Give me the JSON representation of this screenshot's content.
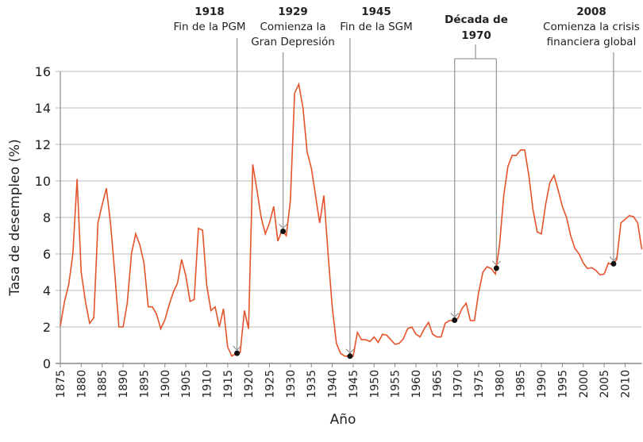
{
  "chart_data": {
    "type": "line",
    "title": "",
    "xlabel": "Año",
    "ylabel": "Tasa de desempleo (%)",
    "xlim": [
      1875,
      2014
    ],
    "ylim": [
      0,
      16
    ],
    "grid": true,
    "line_color": "#e5532a",
    "x_ticks": [
      1875,
      1880,
      1885,
      1890,
      1895,
      1900,
      1905,
      1910,
      1915,
      1920,
      1925,
      1930,
      1935,
      1940,
      1945,
      1950,
      1955,
      1960,
      1965,
      1970,
      1975,
      1980,
      1985,
      1990,
      1995,
      2000,
      2005,
      2010
    ],
    "y_ticks": [
      0,
      2,
      4,
      6,
      8,
      10,
      12,
      14,
      16
    ],
    "series": [
      {
        "x": [
          1875,
          1876,
          1877,
          1878,
          1879,
          1880,
          1881,
          1882,
          1883,
          1884,
          1885,
          1886,
          1887,
          1888,
          1889,
          1890,
          1891,
          1892,
          1893,
          1894,
          1895,
          1896,
          1897,
          1898,
          1899,
          1900,
          1901,
          1902,
          1903,
          1904,
          1905,
          1906,
          1907,
          1908,
          1909,
          1910,
          1911,
          1912,
          1913,
          1914,
          1915,
          1916,
          1917,
          1918,
          1919,
          1920,
          1921,
          1922,
          1923,
          1924,
          1925,
          1926,
          1927,
          1928,
          1929,
          1930,
          1931,
          1932,
          1933,
          1934,
          1935,
          1936,
          1937,
          1938,
          1939,
          1940,
          1941,
          1942,
          1943,
          1944,
          1945,
          1946,
          1947,
          1948,
          1949,
          1950,
          1951,
          1952,
          1953,
          1954,
          1955,
          1956,
          1957,
          1958,
          1959,
          1960,
          1961,
          1962,
          1963,
          1964,
          1965,
          1966,
          1967,
          1968,
          1969,
          1970,
          1971,
          1972,
          1973,
          1974,
          1975,
          1976,
          1977,
          1978,
          1979,
          1980,
          1981,
          1982,
          1983,
          1984,
          1985,
          1986,
          1987,
          1988,
          1989,
          1990,
          1991,
          1992,
          1993,
          1994,
          1995,
          1996,
          1997,
          1998,
          1999,
          2000,
          2001,
          2002,
          2003,
          2004,
          2005,
          2006,
          2007,
          2008,
          2009,
          2010,
          2011,
          2012,
          2013,
          2014
        ],
        "y": [
          2.05,
          3.4,
          4.3,
          6.0,
          10.1,
          5.0,
          3.4,
          2.2,
          2.5,
          7.7,
          8.7,
          9.6,
          7.7,
          5.0,
          2.0,
          2.0,
          3.3,
          6.0,
          7.1,
          6.5,
          5.5,
          3.1,
          3.1,
          2.7,
          1.9,
          2.4,
          3.2,
          3.9,
          4.4,
          5.7,
          4.8,
          3.4,
          3.5,
          7.4,
          7.3,
          4.3,
          2.9,
          3.1,
          2.0,
          3.0,
          0.9,
          0.4,
          0.55,
          0.6,
          2.9,
          1.9,
          10.9,
          9.5,
          8.0,
          7.1,
          7.7,
          8.6,
          6.7,
          7.3,
          7.0,
          8.9,
          14.8,
          15.3,
          14.0,
          11.6,
          10.7,
          9.2,
          7.7,
          9.2,
          6.0,
          3.1,
          1.1,
          0.55,
          0.4,
          0.4,
          0.4,
          1.7,
          1.3,
          1.3,
          1.2,
          1.45,
          1.15,
          1.6,
          1.55,
          1.3,
          1.05,
          1.1,
          1.35,
          1.9,
          2.0,
          1.6,
          1.45,
          1.9,
          2.25,
          1.6,
          1.45,
          1.45,
          2.2,
          2.35,
          2.35,
          2.45,
          3.0,
          3.3,
          2.35,
          2.35,
          3.9,
          5.0,
          5.3,
          5.2,
          4.9,
          6.5,
          9.2,
          10.8,
          11.4,
          11.4,
          11.7,
          11.7,
          10.3,
          8.4,
          7.2,
          7.1,
          8.7,
          9.9,
          10.3,
          9.5,
          8.6,
          8.0,
          7.0,
          6.3,
          6.0,
          5.5,
          5.2,
          5.25,
          5.1,
          4.85,
          4.9,
          5.5,
          5.4,
          5.7,
          7.7,
          7.9,
          8.1,
          8.05,
          7.7,
          6.25
        ]
      }
    ],
    "annotations": [
      {
        "year": 1918,
        "title": "1918",
        "lines": [
          "Fin de la PGM"
        ]
      },
      {
        "year": 1929,
        "title": "1929",
        "lines": [
          "Comienza la",
          "Gran Depresión"
        ]
      },
      {
        "year": 1945,
        "title": "1945",
        "lines": [
          "Fin de la SGM"
        ]
      },
      {
        "year_range": [
          1970,
          1980
        ],
        "title_lines": [
          "Década de",
          "1970"
        ]
      },
      {
        "year": 2008,
        "title": "2008",
        "lines": [
          "Comienza la crisis",
          "financiera global"
        ]
      }
    ]
  }
}
